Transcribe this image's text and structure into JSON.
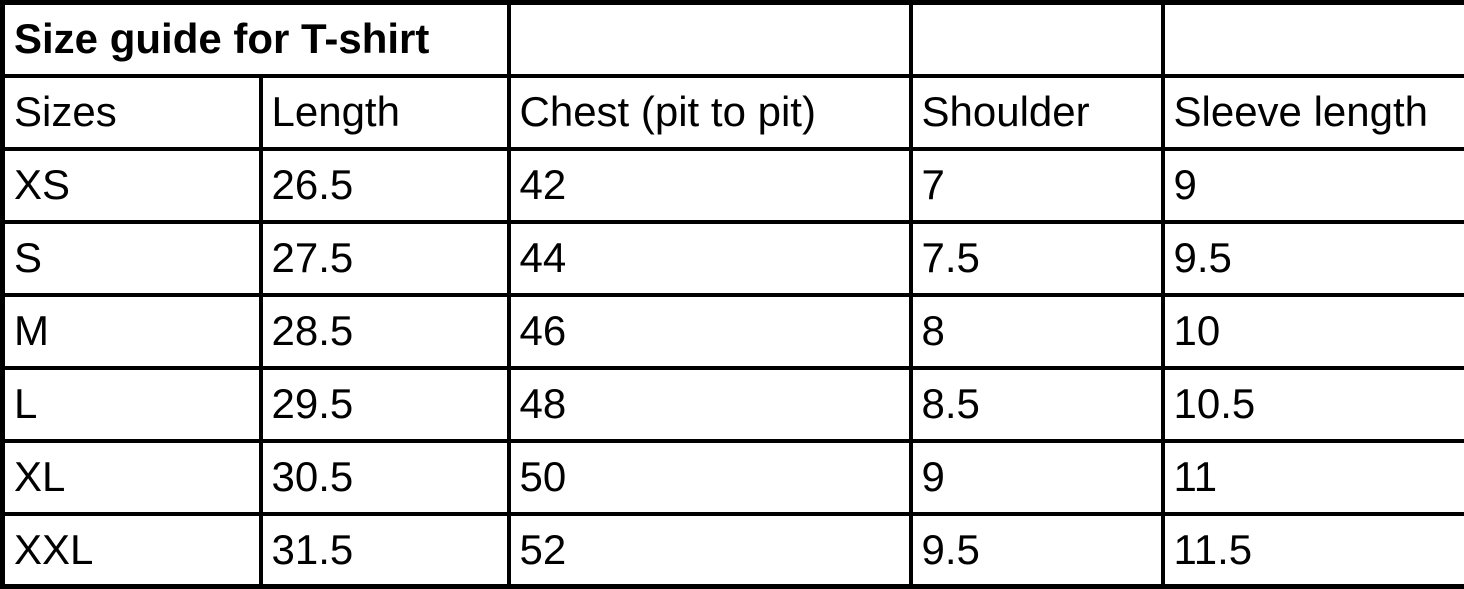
{
  "colors": {
    "background": "#ffffff",
    "border": "#000000",
    "text": "#000000"
  },
  "size_guide_table": {
    "title": "Size guide for T-shirt",
    "headers": [
      "Sizes",
      "Length",
      "Chest (pit to pit)",
      "Shoulder",
      "Sleeve length"
    ],
    "rows": [
      {
        "size": "XS",
        "length": "26.5",
        "chest": "42",
        "shoulder": "7",
        "sleeve_length": "9"
      },
      {
        "size": "S",
        "length": "27.5",
        "chest": "44",
        "shoulder": "7.5",
        "sleeve_length": "9.5"
      },
      {
        "size": "M",
        "length": "28.5",
        "chest": "46",
        "shoulder": "8",
        "sleeve_length": "10"
      },
      {
        "size": "L",
        "length": "29.5",
        "chest": "48",
        "shoulder": "8.5",
        "sleeve_length": "10.5"
      },
      {
        "size": "XL",
        "length": "30.5",
        "chest": "50",
        "shoulder": "9",
        "sleeve_length": "11"
      },
      {
        "size": "XXL",
        "length": "31.5",
        "chest": "52",
        "shoulder": "9.5",
        "sleeve_length": "11.5"
      }
    ]
  }
}
